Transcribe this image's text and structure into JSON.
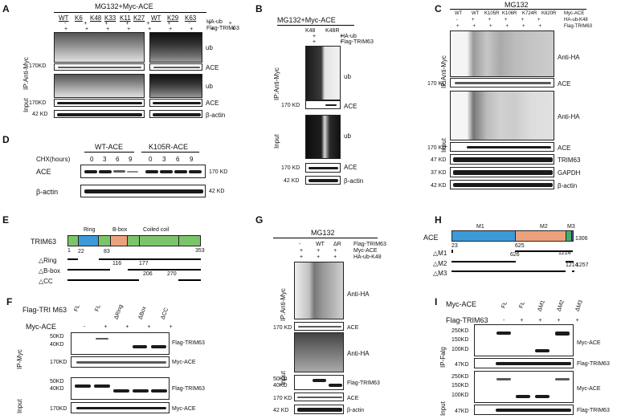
{
  "panels": {
    "A": {
      "letter": "A",
      "title": "MG132+Myc-ACE",
      "lanes": [
        "WT",
        "K6",
        "K48",
        "K33",
        "K11",
        "K27",
        "WT",
        "K29",
        "K63"
      ],
      "rows": [
        "HA-ub",
        "Flag-TRIM63"
      ],
      "plus_minus": [
        "-",
        "+",
        "+",
        "+",
        "+",
        "+",
        "+",
        "+",
        "+",
        "+",
        "+",
        "+"
      ],
      "section_ip": "IP:Anti-Myc",
      "section_input": "Input",
      "labels": [
        "ub",
        "ACE",
        "ub",
        "ACE",
        "β-actin"
      ],
      "markers": [
        "170KD",
        "170KD",
        "42 KD"
      ]
    },
    "B": {
      "letter": "B",
      "title": "MG132+Myc-ACE",
      "lanes": [
        "K48",
        "K48R"
      ],
      "rows": [
        "HA-ub",
        "Flag-TRIM63"
      ],
      "plus_minus": [
        "+",
        "+",
        "+",
        "+"
      ],
      "section_ip": "IP:Anti-Myc",
      "section_input": "Input",
      "labels": [
        "ub",
        "ACE",
        "ub",
        "ACE",
        "β-actin"
      ],
      "markers": [
        "170 KD",
        "170 KD",
        "42 KD"
      ]
    },
    "C": {
      "letter": "C",
      "title": "MG132",
      "lanes": [
        "WT",
        "WT",
        "K105R",
        "K106R",
        "K724R",
        "K820R"
      ],
      "rows": [
        "Myc-ACE",
        "HA-ub-K48",
        "Flag-TRIM63"
      ],
      "plus_minus": [
        "-",
        "+",
        "+",
        "+",
        "+",
        "+",
        "+",
        "+",
        "+",
        "+",
        "+",
        "+"
      ],
      "section_ip": "IP:Anti-Myc",
      "section_input": "Input",
      "labels": [
        "Anti-HA",
        "ACE",
        "Anti-HA",
        "ACE",
        "TRIM63",
        "GAPDH",
        "β-actin"
      ],
      "markers": [
        "170 KD",
        "170 KD",
        "47 KD",
        "37 KD",
        "42 KD"
      ]
    },
    "D": {
      "letter": "D",
      "xlabel": "CHX(hours)",
      "groups": [
        "WT-ACE",
        "K105R-ACE"
      ],
      "timepoints": [
        "0",
        "3",
        "6",
        "9",
        "0",
        "3",
        "6",
        "9"
      ],
      "labels": [
        "ACE",
        "β-actin"
      ],
      "markers": [
        "170 KD",
        "42 KD"
      ]
    },
    "E": {
      "letter": "E",
      "protein": "TRIM63",
      "domains": [
        "Ring",
        "B-box",
        "Coiled coil"
      ],
      "positions": [
        "1",
        "22",
        "83",
        "353",
        "116",
        "177",
        "206",
        "270"
      ],
      "constructs": [
        "△Ring",
        "△B-box",
        "△CC"
      ]
    },
    "F": {
      "letter": "F",
      "header": "Flag-TRI M63",
      "lanes": [
        "FL",
        "FL",
        "ΔRing",
        "ΔBox",
        "ΔCC"
      ],
      "myc_row": "Myc-ACE",
      "plus_minus": [
        "-",
        "+",
        "+",
        "+",
        "+"
      ],
      "section_ip": "IP-Myc",
      "section_input": "Input",
      "labels": [
        "Flag-TRIM63",
        "Myc-ACE",
        "Flag-TRIM63",
        "Myc-ACE"
      ],
      "markers": [
        "50KD",
        "40KD",
        "170KD",
        "50KD",
        "40KD",
        "170KD"
      ]
    },
    "G": {
      "letter": "G",
      "title": "MG132",
      "lanes": [
        "-",
        "WT",
        "ΔR"
      ],
      "rows": [
        "Flag-TRIM63",
        "Myc-ACE",
        "HA-ub-K48"
      ],
      "plus_minus": [
        "+",
        "+",
        "+",
        "+",
        "+",
        "+"
      ],
      "section_ip": "IP:Anti-Myc",
      "section_input": "Input",
      "labels": [
        "Anti-HA",
        "ACE",
        "Anti-HA",
        "Flag-TRIM63",
        "ACE",
        "β-actin"
      ],
      "markers": [
        "170 KD",
        "50KD",
        "40KD",
        "170 KD",
        "42 KD"
      ]
    },
    "H": {
      "letter": "H",
      "protein": "ACE",
      "domains": [
        "M1",
        "M2",
        "M3"
      ],
      "positions": [
        "23",
        "1306",
        "625",
        "626",
        "1214",
        "1214",
        "1257"
      ],
      "constructs": [
        "△M1",
        "△M2",
        "△M3"
      ]
    },
    "I": {
      "letter": "I",
      "myc_row": "Myc-ACE",
      "flag_row": "Flag-TRIM63",
      "lanes": [
        "FL",
        "FL",
        "ΔM1",
        "ΔM2",
        "ΔM3"
      ],
      "plus_minus": [
        "-",
        "+",
        "+",
        "+",
        "+"
      ],
      "section_ip": "IP-Falg",
      "section_input": "Input",
      "labels": [
        "Myc-ACE",
        "Flag-TRIM63",
        "Myc-ACE",
        "Flag-TRIM63"
      ],
      "markers": [
        "250KD",
        "150KD",
        "100KD",
        "47KD",
        "250KD",
        "150KD",
        "100KD",
        "47KD"
      ]
    }
  }
}
